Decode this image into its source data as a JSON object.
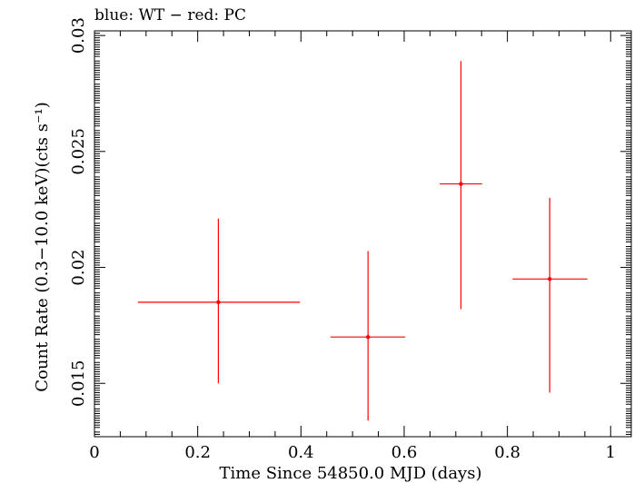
{
  "chart_data": {
    "type": "scatter",
    "annotation": "blue: WT − red: PC",
    "xlabel": "Time Since 54850.0 MJD (days)",
    "ylabel": "Count Rate (0.3−10.0 keV)(cts s⁻¹)",
    "xlim": [
      0,
      1.04
    ],
    "ylim": [
      0.0127,
      0.0302
    ],
    "x_ticks": [
      {
        "value": 0,
        "label": "0"
      },
      {
        "value": 0.2,
        "label": "0.2"
      },
      {
        "value": 0.4,
        "label": "0.4"
      },
      {
        "value": 0.6,
        "label": "0.6"
      },
      {
        "value": 0.8,
        "label": "0.8"
      },
      {
        "value": 1,
        "label": "1"
      }
    ],
    "y_ticks": [
      {
        "value": 0.015,
        "label": "0.015"
      },
      {
        "value": 0.02,
        "label": "0.02"
      },
      {
        "value": 0.025,
        "label": "0.025"
      },
      {
        "value": 0.03,
        "label": "0.03"
      }
    ],
    "grid": false,
    "series": [
      {
        "name": "PC",
        "color": "#ff0000",
        "points": [
          {
            "x": 0.24,
            "y": 0.0185,
            "xerr_low": 0.084,
            "xerr_high": 0.398,
            "yerr_low": 0.015,
            "yerr_high": 0.0221
          },
          {
            "x": 0.53,
            "y": 0.017,
            "xerr_low": 0.457,
            "xerr_high": 0.602,
            "yerr_low": 0.0134,
            "yerr_high": 0.0207
          },
          {
            "x": 0.71,
            "y": 0.0236,
            "xerr_low": 0.669,
            "xerr_high": 0.751,
            "yerr_low": 0.0182,
            "yerr_high": 0.0289
          },
          {
            "x": 0.882,
            "y": 0.0195,
            "xerr_low": 0.81,
            "xerr_high": 0.955,
            "yerr_low": 0.0146,
            "yerr_high": 0.023
          }
        ]
      }
    ]
  }
}
